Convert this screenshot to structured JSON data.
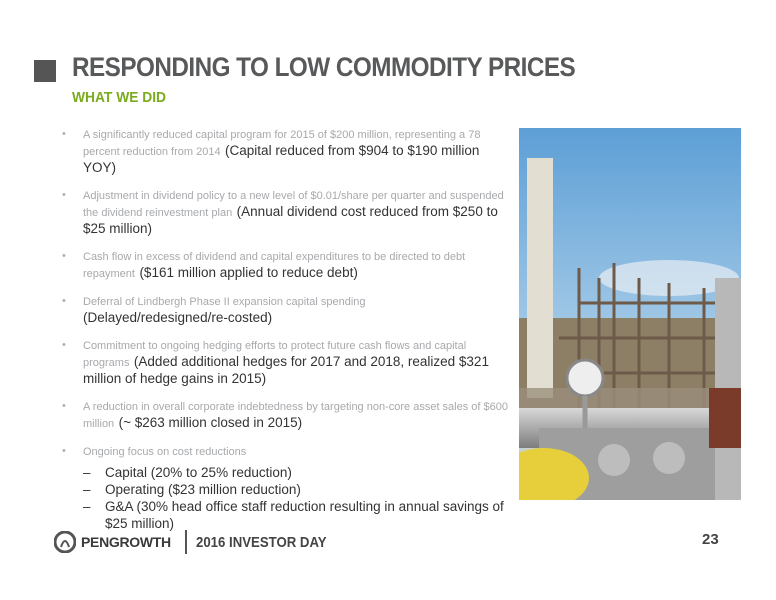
{
  "header": {
    "title": "RESPONDING TO LOW COMMODITY PRICES",
    "subtitle": "WHAT WE DID"
  },
  "bullets": [
    {
      "text": "A significantly reduced capital program for 2015 of $200 million, representing a 78 percent reduction from 2014",
      "note": "(Capital reduced from $904 to $190 million YOY)"
    },
    {
      "text": "Adjustment in dividend policy to a new level of $0.01/share per quarter and suspended the dividend reinvestment plan",
      "note": "(Annual dividend cost reduced from $250 to $25 million)"
    },
    {
      "text": "Cash flow in excess of dividend and capital expenditures to be directed to debt repayment",
      "note": "($161 million applied to reduce debt)"
    },
    {
      "text": "Deferral of Lindbergh Phase II expansion capital spending",
      "note": "(Delayed/redesigned/re-costed)"
    },
    {
      "text": "Commitment to ongoing hedging efforts to protect future cash flows and capital programs",
      "note": "(Added additional hedges for 2017 and 2018, realized $321 million of hedge gains in 2015)"
    },
    {
      "text": "A reduction in overall corporate indebtedness by targeting non-core asset sales of $600 million",
      "note": "(~ $263 million closed in 2015)"
    },
    {
      "text": "Ongoing focus on cost reductions",
      "subitems": [
        "Capital (20% to 25% reduction)",
        "Operating ($23 million reduction)",
        "G&A (30% head office staff reduction resulting in annual savings of $25 million)"
      ]
    }
  ],
  "footer": {
    "logo": "PENGROWTH",
    "event": "2016 INVESTOR DAY",
    "page": "23"
  }
}
